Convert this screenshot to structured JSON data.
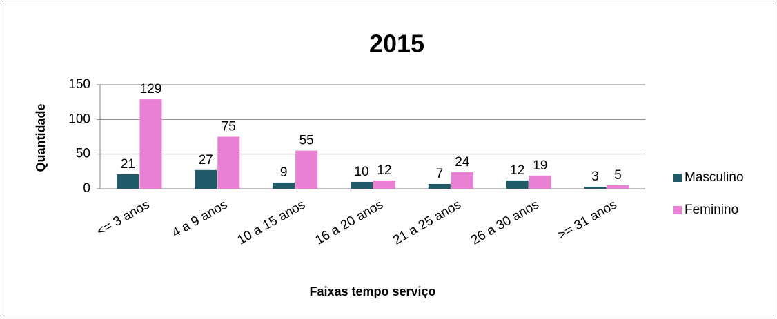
{
  "chart_data": {
    "type": "bar",
    "title": "2015",
    "x_label": "Faixas tempo serviço",
    "y_label": "Quantidade",
    "categories": [
      "<= 3 anos",
      "4 a 9 anos",
      "10 a 15 anos",
      "16 a 20 anos",
      "21 a 25 anos",
      "26 a 30 anos",
      ">= 31 anos"
    ],
    "series": [
      {
        "name": "Masculino",
        "color": "#215a69",
        "values": [
          21,
          27,
          9,
          10,
          7,
          12,
          3
        ]
      },
      {
        "name": "Feminino",
        "color": "#ea80d4",
        "values": [
          129,
          75,
          55,
          12,
          24,
          19,
          5
        ]
      }
    ],
    "ylim": [
      0,
      150
    ],
    "yticks": [
      0,
      50,
      100,
      150
    ],
    "grid": true,
    "legend": "right"
  }
}
